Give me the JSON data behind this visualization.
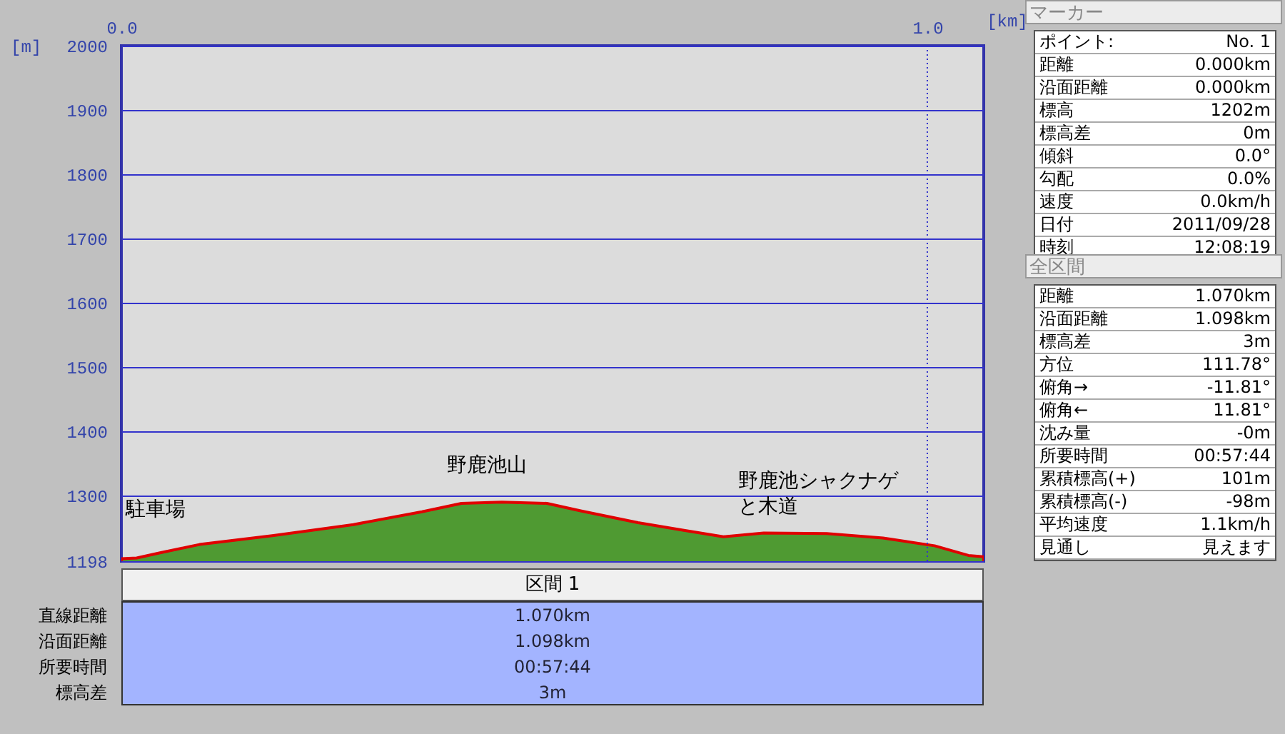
{
  "chart_data": {
    "type": "area",
    "x": [
      0,
      0.019,
      0.048,
      0.097,
      0.189,
      0.288,
      0.373,
      0.422,
      0.472,
      0.528,
      0.571,
      0.641,
      0.698,
      0.747,
      0.797,
      0.875,
      0.945,
      1.009,
      1.051,
      1.07
    ],
    "series": [
      {
        "color": "#4f9a32",
        "values": [
          1202,
          1203,
          1211,
          1224,
          1238,
          1255,
          1275,
          1288,
          1290,
          1288,
          1276,
          1258,
          1246,
          1236,
          1242,
          1241,
          1234,
          1222,
          1207,
          1205
        ]
      }
    ],
    "xlabel": "[km]",
    "ylabel": "[m]",
    "xlim": [
      0,
      1.07
    ],
    "xticks": [
      {
        "value": 0,
        "label": "0.0"
      },
      {
        "value": 1,
        "label": "1.0"
      }
    ],
    "ylim": [
      1198,
      2000
    ],
    "yticks": [
      1198,
      1300,
      1400,
      1500,
      1600,
      1700,
      1800,
      1900,
      2000
    ],
    "grid": "y",
    "ref_lines": [
      {
        "axis": "x",
        "value": 1,
        "color": "#3333cc",
        "line_style": "dotted"
      }
    ],
    "annotations": [
      "駐車場",
      "野鹿池山",
      "野鹿池シャクナゲと木道",
      "マーカー",
      "ポイント:",
      "No. 1",
      "距離",
      "0.000km",
      "沿面距離",
      "0.000km",
      "標高",
      "1202m",
      "標高差",
      "0m",
      "傾斜",
      "0.0°",
      "勾配",
      "0.0%",
      "速度",
      "0.0km/h",
      "日付",
      "2011/09/28",
      "時刻",
      "12:08:19",
      "全区間",
      "距離",
      "1.070km",
      "沿面距離",
      "1.098km",
      "標高差",
      "3m",
      "方位",
      "111.78°",
      "俯角→",
      "-11.81°",
      "俯角←",
      "11.81°",
      "沈み量",
      "-0m",
      "所要時間",
      "00:57:44",
      "累積標高(+)",
      "101m",
      "累積標高(-)",
      "-98m",
      "平均速度",
      "1.1km/h",
      "見通し",
      "見えます",
      "区間 1",
      "直線距離",
      "1.070km",
      "沿面距離",
      "1.098km",
      "所要時間",
      "00:57:44",
      "標高差",
      "3m"
    ]
  }
}
